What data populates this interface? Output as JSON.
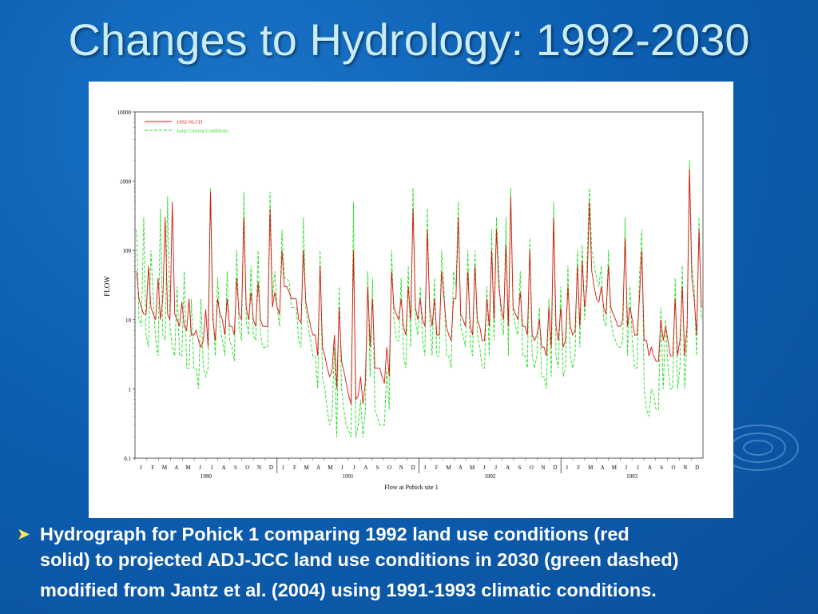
{
  "slide": {
    "title": "Changes to Hydrology: 1992-2030",
    "caption": {
      "line1": "Hydrograph  for Pohick 1 comparing 1992 land use conditions (red",
      "line2": "solid) to projected ADJ-JCC land use conditions in 2030 (green dashed)",
      "line3": "modified from Jantz et al. (2004) using 1991-1993 climatic conditions."
    }
  },
  "chart_data": {
    "type": "line",
    "xlabel": "Flow at Pohick site 1",
    "ylabel": "FLOW",
    "y_scale": "log",
    "ylim": [
      0.1,
      10000
    ],
    "y_ticks": [
      "10000",
      "1000",
      "100",
      "10",
      "1",
      "0.1"
    ],
    "month_labels": [
      "J",
      "F",
      "M",
      "A",
      "M",
      "J",
      "J",
      "A",
      "S",
      "O",
      "N",
      "D"
    ],
    "years": [
      "1990",
      "1991",
      "1992",
      "1993"
    ],
    "legend_position": "top-left",
    "series": [
      {
        "name": "1992 NLCD",
        "color": "#dd1111",
        "style": "solid",
        "values": [
          50,
          20,
          15,
          12,
          12,
          60,
          15,
          12,
          10,
          40,
          10,
          20,
          300,
          12,
          10,
          500,
          12,
          10,
          8,
          18,
          8,
          7,
          20,
          6,
          6,
          7,
          5,
          4,
          5,
          14,
          4,
          700,
          10,
          5,
          20,
          12,
          10,
          6,
          20,
          8,
          8,
          6,
          40,
          12,
          10,
          300,
          15,
          10,
          25,
          10,
          8,
          35,
          10,
          8,
          8,
          8,
          400,
          15,
          25,
          15,
          12,
          100,
          30,
          30,
          25,
          20,
          20,
          20,
          10,
          9,
          100,
          18,
          12,
          8,
          6,
          6,
          3,
          60,
          4,
          3,
          2,
          1.5,
          1.8,
          6,
          1,
          15,
          2.5,
          1.8,
          1.2,
          0.8,
          0.6,
          100,
          0.7,
          0.8,
          1.5,
          0.6,
          1.3,
          30,
          4,
          20,
          2,
          2,
          2,
          1.5,
          1.2,
          4,
          1.5,
          50,
          15,
          12,
          10,
          20,
          8,
          6,
          30,
          10,
          400,
          15,
          10,
          20,
          10,
          8,
          200,
          15,
          8,
          20,
          6,
          6,
          50,
          20,
          8,
          6,
          5,
          20,
          20,
          300,
          12,
          10,
          8,
          50,
          8,
          6,
          60,
          10,
          8,
          5,
          5,
          20,
          8,
          100,
          10,
          200,
          30,
          15,
          10,
          120,
          8,
          600,
          15,
          12,
          10,
          25,
          8,
          8,
          6,
          100,
          6,
          5,
          6,
          10,
          4,
          4,
          3,
          15,
          4,
          300,
          8,
          5,
          15,
          4,
          5,
          30,
          8,
          6,
          7,
          60,
          8,
          70,
          15,
          30,
          500,
          50,
          30,
          20,
          18,
          30,
          15,
          12,
          60,
          15,
          12,
          10,
          8,
          8,
          10,
          150,
          8,
          15,
          10,
          6,
          6,
          20,
          100,
          5,
          5,
          3,
          4,
          3,
          2.5,
          2.5,
          10,
          5,
          8,
          5,
          3,
          3,
          20,
          3,
          5,
          30,
          3,
          8,
          1500,
          40,
          20,
          6,
          200,
          15
        ],
        "value_range": "approx. 0.6 to 1500"
      },
      {
        "name": "Jantz Current Conditions",
        "color": "#22dd22",
        "style": "dashed",
        "values": [
          200,
          10,
          8,
          300,
          6,
          4,
          100,
          20,
          5,
          3,
          400,
          6,
          5,
          600,
          8,
          4,
          3,
          30,
          3,
          3,
          50,
          2,
          2,
          20,
          2,
          2,
          1,
          20,
          2,
          1.5,
          2,
          800,
          15,
          3,
          40,
          8,
          5,
          3,
          50,
          5,
          4,
          2.5,
          100,
          8,
          5,
          700,
          10,
          6,
          60,
          6,
          5,
          100,
          6,
          4,
          4,
          4,
          700,
          20,
          50,
          15,
          8,
          200,
          40,
          40,
          35,
          15,
          15,
          15,
          5,
          4,
          300,
          15,
          8,
          5,
          3,
          3,
          1,
          100,
          1.5,
          1,
          0.5,
          0.3,
          0.4,
          4,
          0.2,
          30,
          1,
          0.5,
          0.3,
          0.25,
          0.2,
          500,
          0.2,
          0.3,
          0.7,
          0.2,
          0.5,
          50,
          1.5,
          40,
          0.5,
          0.4,
          0.3,
          0.3,
          0.3,
          2,
          0.5,
          100,
          10,
          5,
          5,
          40,
          3,
          2,
          60,
          4,
          800,
          10,
          6,
          30,
          5,
          3,
          400,
          10,
          3,
          40,
          3,
          3,
          100,
          30,
          3,
          3,
          2,
          50,
          30,
          500,
          8,
          6,
          4,
          100,
          4,
          3,
          100,
          6,
          4,
          2,
          2,
          30,
          3,
          200,
          5,
          300,
          50,
          10,
          6,
          300,
          3,
          800,
          12,
          8,
          6,
          50,
          3,
          3,
          2,
          150,
          3,
          2,
          3,
          15,
          1.5,
          1.5,
          1,
          20,
          1.5,
          500,
          3,
          2,
          30,
          1.5,
          2,
          60,
          3,
          2,
          3,
          100,
          4,
          120,
          10,
          60,
          800,
          100,
          60,
          40,
          30,
          60,
          10,
          8,
          100,
          10,
          6,
          5,
          4,
          4,
          5,
          300,
          3,
          30,
          5,
          2,
          2,
          40,
          200,
          1,
          0.5,
          0.4,
          1,
          0.8,
          0.5,
          0.5,
          15,
          1,
          10,
          2,
          1,
          1,
          40,
          1,
          2,
          60,
          1,
          5,
          2000,
          60,
          30,
          3,
          300,
          10
        ],
        "value_range": "approx. 0.17 to 2000"
      }
    ]
  }
}
